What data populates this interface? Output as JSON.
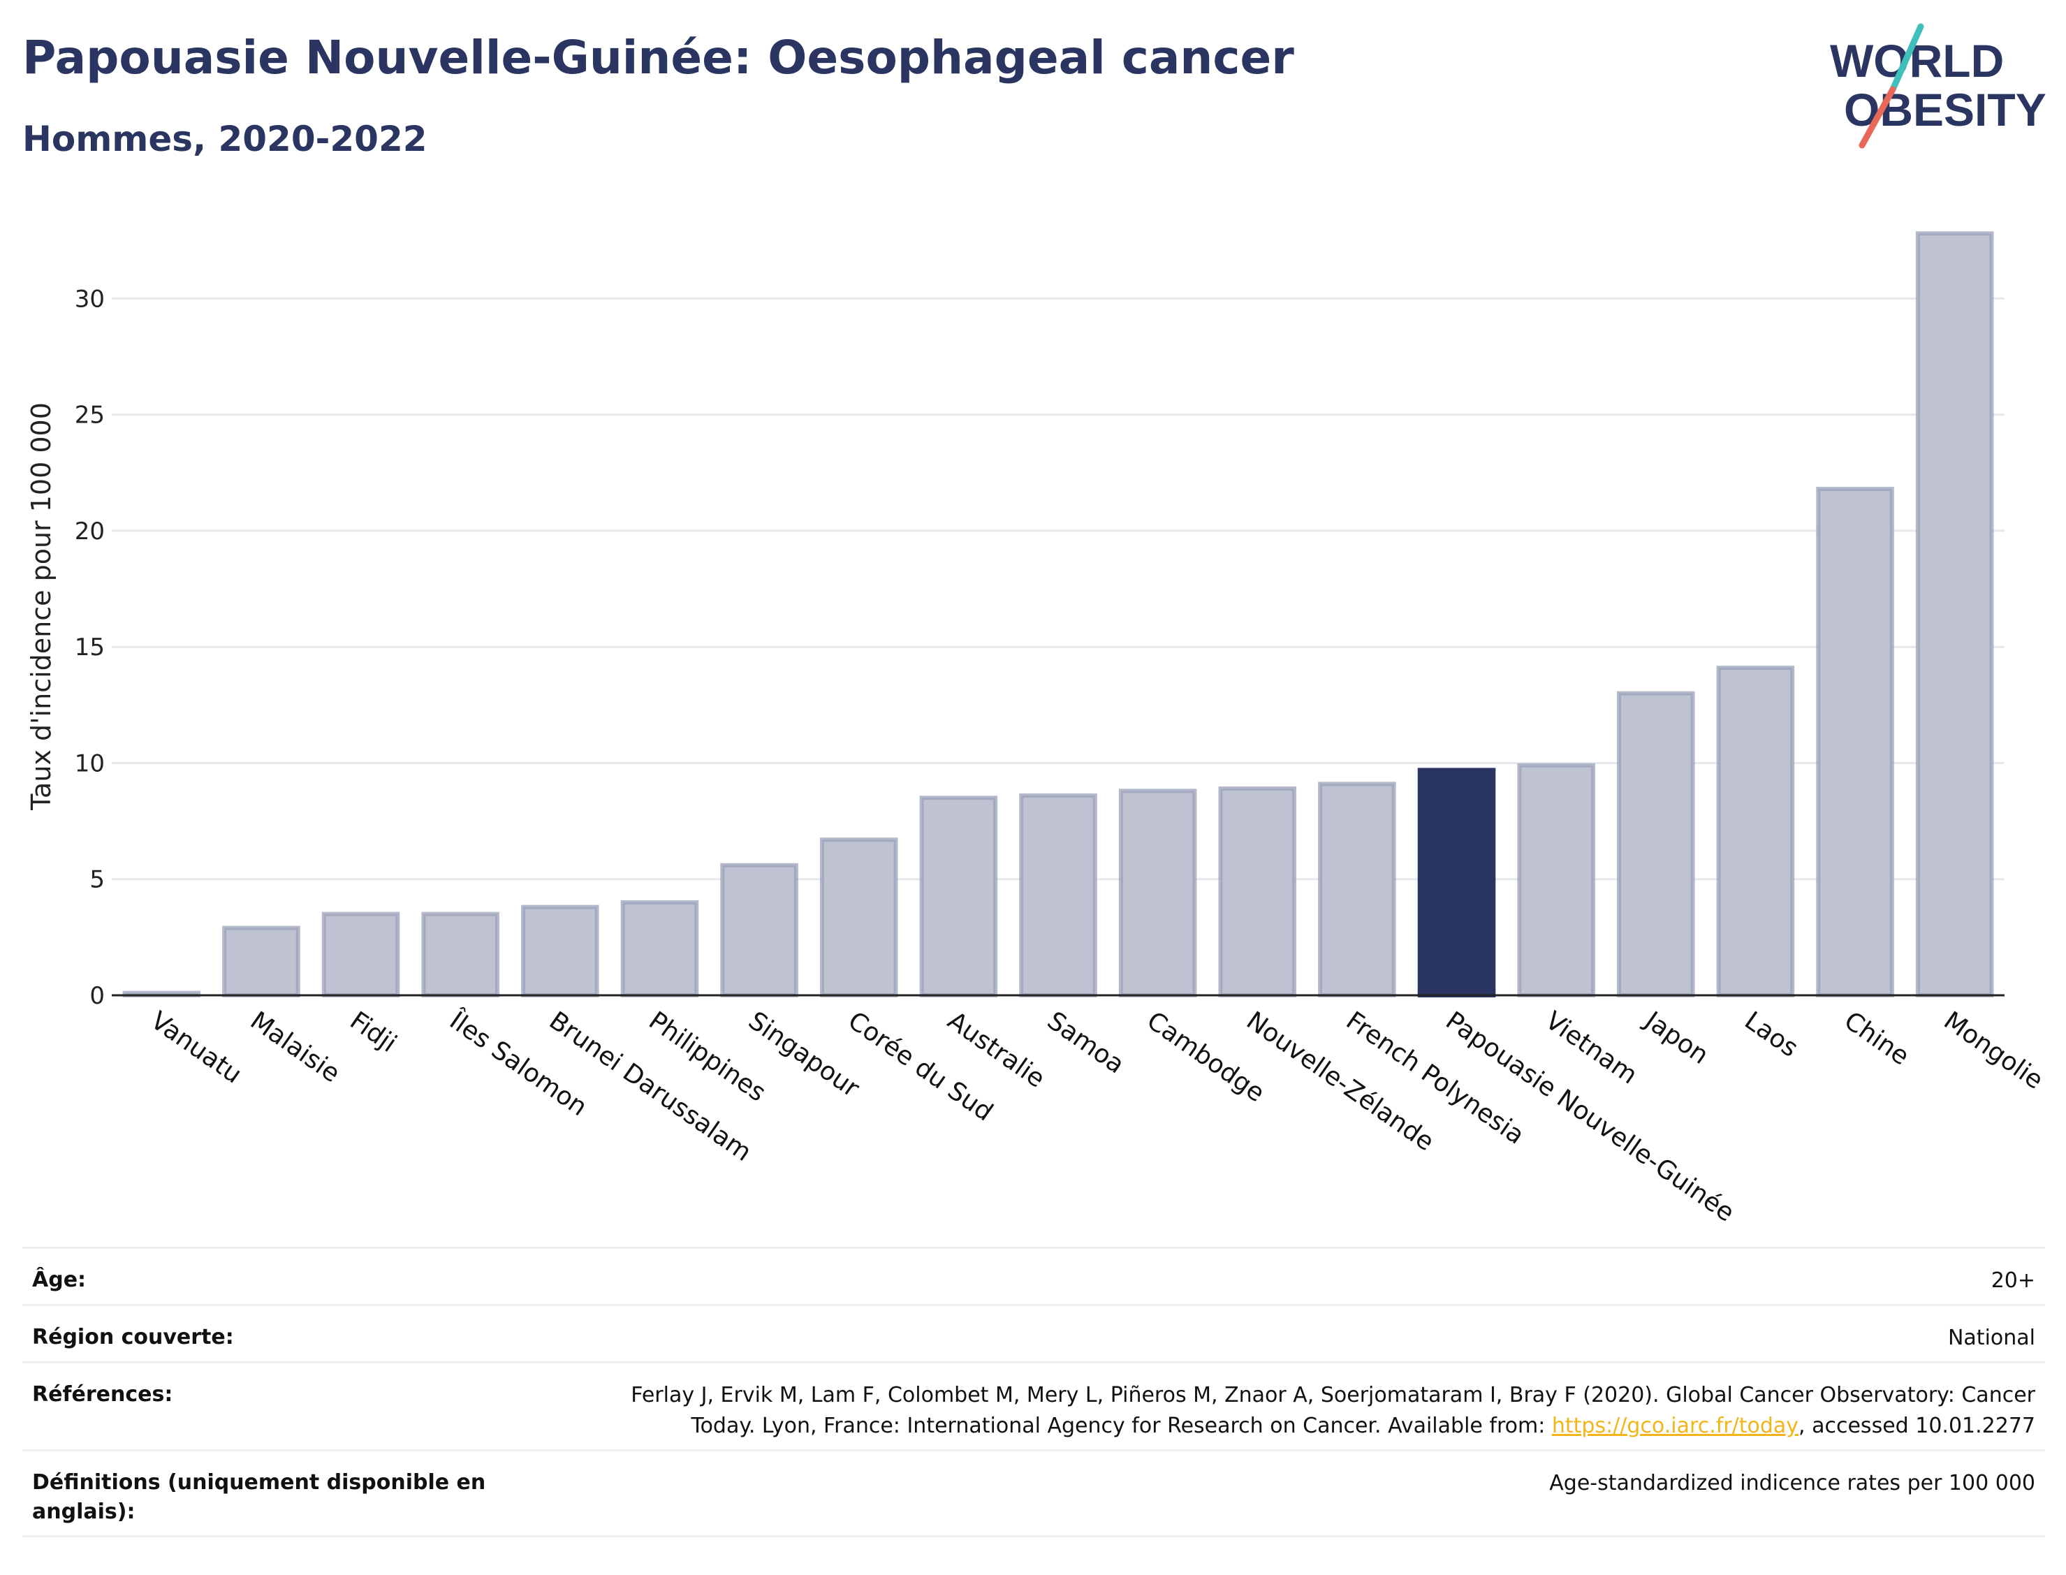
{
  "header": {
    "title": "Papouasie Nouvelle-Guinée: Oesophageal cancer",
    "subtitle": "Hommes, 2020-2022"
  },
  "logo": {
    "line1": "WORLD",
    "line2": "OBESITY",
    "colors": {
      "text": "#2a3561",
      "slash_teal": "#3fbfbc",
      "slash_red": "#e8695a"
    }
  },
  "colors": {
    "bar": "#bfc3d1",
    "bar_stroke": "#9aa1b8",
    "highlight": "#2a3561",
    "grid": "#e6e8ee",
    "axis": "#222222"
  },
  "chart_data": {
    "type": "bar",
    "ylabel": "Taux d'incidence pour 100 000",
    "ylim": [
      0,
      33.5
    ],
    "yticks": [
      0,
      5,
      10,
      15,
      20,
      25,
      30
    ],
    "grid": true,
    "categories": [
      "Vanuatu",
      "Malaisie",
      "Fidji",
      "Îles Salomon",
      "Brunei Darussalam",
      "Philippines",
      "Singapour",
      "Corée du Sud",
      "Australie",
      "Samoa",
      "Cambodge",
      "Nouvelle-Zélande",
      "French Polynesia",
      "Papouasie Nouvelle-Guinée",
      "Vietnam",
      "Japon",
      "Laos",
      "Chine",
      "Mongolie"
    ],
    "values": [
      0.1,
      2.9,
      3.5,
      3.5,
      3.8,
      4.0,
      5.6,
      6.7,
      8.5,
      8.6,
      8.8,
      8.9,
      9.1,
      9.7,
      9.9,
      13.0,
      14.1,
      21.8,
      32.8
    ],
    "highlight": "Papouasie Nouvelle-Guinée"
  },
  "meta": [
    {
      "label": "Âge:",
      "value": "20+"
    },
    {
      "label": "Région couverte:",
      "value": "National"
    },
    {
      "label": "Références:",
      "value_line1": "Ferlay J, Ervik M, Lam F, Colombet M, Mery L, Piñeros M, Znaor A, Soerjomataram I, Bray F (2020). Global Cancer Observatory: Cancer",
      "value_line2_pre": "Today. Lyon, France: International Agency for Research on Cancer. Available from: ",
      "link": "https://gco.iarc.fr/today",
      "value_line2_post": ", accessed 10.01.2277"
    },
    {
      "label": "Définitions (uniquement disponible en anglais):",
      "value": "Age-standardized indicence rates per 100 000"
    }
  ]
}
